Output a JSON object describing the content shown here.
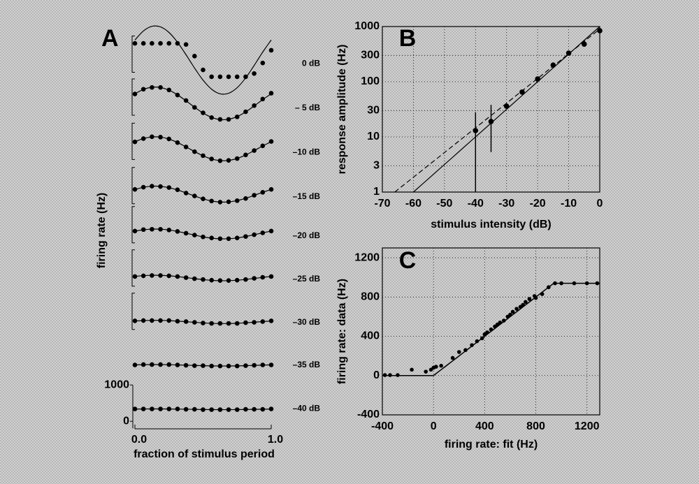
{
  "chart_data": [
    {
      "type": "line",
      "label": "A",
      "x_label": "fraction of stimulus period",
      "y_label": "firing rate (Hz)",
      "x": [
        0,
        0.0625,
        0.125,
        0.1875,
        0.25,
        0.3125,
        0.375,
        0.4375,
        0.5,
        0.5625,
        0.625,
        0.6875,
        0.75,
        0.8125,
        0.875,
        0.9375,
        1
      ],
      "xlim": [
        0,
        1
      ],
      "xticks": [
        {
          "value": 0,
          "label": "0.0"
        },
        {
          "value": 1,
          "label": "1.0"
        }
      ],
      "yticks": [
        0,
        1000
      ],
      "series": [
        {
          "name": "0 dB",
          "color": "#000000",
          "values": [
            950,
            950,
            950,
            950,
            950,
            950,
            920,
            600,
            220,
            30,
            30,
            30,
            30,
            30,
            120,
            410,
            760
          ],
          "fit": [
            1043,
            1292,
            1419,
            1404,
            1250,
            981,
            637,
            271,
            -63,
            -312,
            -439,
            -424,
            -270,
            -1,
            343,
            709,
            1043
          ]
        },
        {
          "name": "– 5 dB",
          "color": "#000000",
          "values": [
            740,
            870,
            920,
            920,
            850,
            710,
            560,
            370,
            220,
            90,
            40,
            40,
            110,
            250,
            420,
            600,
            760
          ],
          "fit": [
            745,
            864,
            925,
            917,
            844,
            715,
            550,
            375,
            215,
            96,
            35,
            43,
            116,
            245,
            410,
            585,
            745
          ]
        },
        {
          "name": "–10 dB",
          "color": "#000000",
          "values": [
            640,
            730,
            780,
            770,
            720,
            620,
            500,
            370,
            260,
            170,
            120,
            130,
            180,
            280,
            400,
            530,
            650
          ],
          "fit": [
            644,
            731,
            776,
            771,
            717,
            622,
            501,
            373,
            256,
            168,
            124,
            129,
            183,
            278,
            399,
            527,
            644
          ]
        },
        {
          "name": "–15 dB",
          "color": "#000000",
          "values": [
            550,
            610,
            640,
            630,
            600,
            540,
            450,
            370,
            290,
            230,
            200,
            210,
            240,
            300,
            390,
            470,
            550
          ],
          "fit": [
            549,
            608,
            637,
            634,
            598,
            535,
            454,
            369,
            291,
            232,
            203,
            206,
            242,
            305,
            386,
            471,
            549
          ]
        },
        {
          "name": "–20 dB",
          "color": "#000000",
          "values": [
            480,
            520,
            530,
            530,
            510,
            470,
            420,
            370,
            320,
            290,
            270,
            270,
            290,
            330,
            380,
            430,
            480
          ],
          "fit": [
            479,
            515,
            533,
            531,
            509,
            470,
            421,
            369,
            321,
            285,
            267,
            269,
            291,
            330,
            379,
            431,
            479
          ]
        },
        {
          "name": "–25 dB",
          "color": "#000000",
          "values": [
            420,
            440,
            450,
            450,
            440,
            420,
            390,
            360,
            340,
            320,
            310,
            310,
            320,
            340,
            370,
            400,
            420
          ],
          "fit": [
            424,
            444,
            454,
            453,
            441,
            419,
            392,
            363,
            336,
            316,
            306,
            307,
            319,
            341,
            368,
            397,
            424
          ]
        },
        {
          "name": "–30 dB",
          "color": "#000000",
          "values": [
            390,
            400,
            400,
            400,
            400,
            380,
            370,
            350,
            330,
            320,
            320,
            320,
            320,
            340,
            350,
            370,
            390
          ],
          "fit": [
            386,
            398,
            404,
            404,
            396,
            383,
            367,
            350,
            334,
            322,
            316,
            316,
            324,
            337,
            353,
            370,
            386
          ]
        },
        {
          "name": "–35 dB",
          "color": "#000000",
          "values": [
            350,
            360,
            360,
            360,
            360,
            350,
            340,
            330,
            330,
            320,
            320,
            320,
            320,
            330,
            340,
            350,
            350
          ],
          "fit": [
            352,
            357,
            360,
            359,
            356,
            350,
            343,
            335,
            328,
            323,
            320,
            321,
            324,
            330,
            337,
            345,
            352
          ]
        },
        {
          "name": "–40 dB",
          "color": "#000000",
          "values": [
            340,
            340,
            340,
            340,
            340,
            340,
            330,
            330,
            320,
            320,
            320,
            320,
            320,
            330,
            330,
            330,
            340
          ],
          "fit": [
            336,
            339,
            340,
            340,
            338,
            335,
            332,
            328,
            324,
            321,
            320,
            320,
            322,
            325,
            328,
            332,
            336
          ]
        }
      ]
    },
    {
      "type": "errorbar",
      "label": "B",
      "x_label": "stimulus intensity (dB)",
      "y_label": "response amplitude (Hz)",
      "x": [
        -40,
        -35,
        -30,
        -25,
        -20,
        -15,
        -10,
        -5,
        0
      ],
      "values": [
        13,
        19,
        36,
        65,
        112,
        200,
        330,
        480,
        840
      ],
      "error_low": [
        1,
        5.3,
        null,
        null,
        null,
        null,
        null,
        null,
        null
      ],
      "error_high": [
        28,
        38,
        null,
        null,
        null,
        null,
        null,
        null,
        null
      ],
      "lines": [
        {
          "x": [
            -60,
            0
          ],
          "values": [
            1,
            1000
          ],
          "style": "solid"
        },
        {
          "x": [
            -66,
            0
          ],
          "values": [
            1,
            900
          ],
          "style": "dashed"
        }
      ],
      "xlim": [
        -70,
        0
      ],
      "xticks": [
        -70,
        -60,
        -50,
        -40,
        -30,
        -20,
        -10,
        0
      ],
      "ylim": [
        1,
        1000
      ],
      "yticks": [
        1,
        3,
        10,
        30,
        100,
        300,
        1000
      ],
      "log_y": true,
      "grid": true,
      "color": "#000000"
    },
    {
      "type": "scatter",
      "label": "C",
      "x_label": "firing rate: fit (Hz)",
      "y_label": "firing rate: data (Hz)",
      "x": [
        -380,
        -340,
        -280,
        -170,
        -60,
        -20,
        0,
        20,
        60,
        150,
        200,
        250,
        300,
        340,
        380,
        400,
        420,
        450,
        480,
        500,
        520,
        550,
        580,
        600,
        620,
        650,
        680,
        700,
        720,
        750,
        790,
        800,
        850,
        900,
        950,
        1000,
        1100,
        1200,
        1280
      ],
      "values": [
        5,
        5,
        5,
        60,
        40,
        60,
        80,
        90,
        100,
        180,
        240,
        260,
        310,
        350,
        380,
        420,
        440,
        470,
        500,
        520,
        540,
        560,
        600,
        620,
        650,
        680,
        700,
        720,
        750,
        780,
        810,
        790,
        830,
        900,
        940,
        940,
        940,
        940,
        940
      ],
      "fit": {
        "x": [
          -400,
          0,
          940,
          1300
        ],
        "values": [
          0,
          0,
          940,
          940
        ]
      },
      "xlim": [
        -400,
        1300
      ],
      "xticks": [
        -400,
        0,
        400,
        800,
        1200
      ],
      "ylim": [
        -400,
        1300
      ],
      "yticks": [
        -400,
        0,
        400,
        800,
        1200
      ],
      "grid": true,
      "color": "#000000"
    }
  ]
}
